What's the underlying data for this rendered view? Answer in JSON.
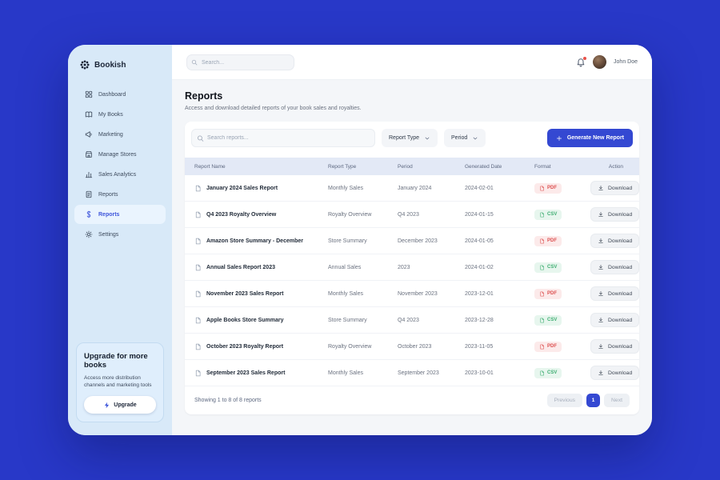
{
  "brand": {
    "name": "Bookish",
    "logo_icon": "flower"
  },
  "topbar": {
    "search_placeholder": "Search...",
    "user_name": "John Doe",
    "has_unread_notification": true
  },
  "sidebar": {
    "items": [
      {
        "label": "Dashboard",
        "icon": "grid",
        "active": false
      },
      {
        "label": "My Books",
        "icon": "book",
        "active": false
      },
      {
        "label": "Marketing",
        "icon": "megaphone",
        "active": false
      },
      {
        "label": "Manage Stores",
        "icon": "store",
        "active": false
      },
      {
        "label": "Sales Analytics",
        "icon": "bar-chart",
        "active": false
      },
      {
        "label": "Reports",
        "icon": "document",
        "active": false
      },
      {
        "label": "Reports",
        "icon": "dollar",
        "active": true
      },
      {
        "label": "Settings",
        "icon": "gear",
        "active": false
      }
    ],
    "upgrade": {
      "title": "Upgrade for more books",
      "description": "Access more distribution channels and marketing tools",
      "button_label": "Upgrade",
      "button_icon": "lightning"
    }
  },
  "page": {
    "title": "Reports",
    "subtitle": "Access and download detailed reports of your book sales and royalties."
  },
  "toolbar": {
    "search_placeholder": "Search reports...",
    "filters": [
      {
        "label": "Report Type"
      },
      {
        "label": "Period"
      }
    ],
    "generate_button": "Generate New Report"
  },
  "table": {
    "columns": [
      "Report Name",
      "Report Type",
      "Period",
      "Generated Date",
      "Format",
      "Action"
    ],
    "download_label": "Download",
    "rows": [
      {
        "name": "January 2024 Sales Report",
        "type": "Monthly Sales",
        "period": "January 2024",
        "date": "2024-02-01",
        "format": "PDF"
      },
      {
        "name": "Q4 2023 Royalty Overview",
        "type": "Royalty Overview",
        "period": "Q4 2023",
        "date": "2024-01-15",
        "format": "CSV"
      },
      {
        "name": "Amazon Store Summary - December",
        "type": "Store Summary",
        "period": "December 2023",
        "date": "2024-01-05",
        "format": "PDF"
      },
      {
        "name": "Annual Sales Report 2023",
        "type": "Annual Sales",
        "period": "2023",
        "date": "2024-01-02",
        "format": "CSV"
      },
      {
        "name": "November 2023 Sales Report",
        "type": "Monthly Sales",
        "period": "November 2023",
        "date": "2023-12-01",
        "format": "PDF"
      },
      {
        "name": "Apple Books Store Summary",
        "type": "Store Summary",
        "period": "Q4 2023",
        "date": "2023-12-28",
        "format": "CSV"
      },
      {
        "name": "October 2023 Royalty Report",
        "type": "Royalty Overview",
        "period": "October 2023",
        "date": "2023-11-05",
        "format": "PDF"
      },
      {
        "name": "September 2023 Sales Report",
        "type": "Monthly Sales",
        "period": "September 2023",
        "date": "2023-10-01",
        "format": "CSV"
      }
    ]
  },
  "pagination": {
    "summary": "Showing 1 to 8 of 8 reports",
    "previous_label": "Previous",
    "page": "1",
    "next_label": "Next"
  },
  "colors": {
    "background": "#2838C8",
    "accent": "#3448D2",
    "sidebar_bg": "#D8E9F8",
    "pdf_badge": "#DD5252",
    "csv_badge": "#3FAE72",
    "notification_dot": "#E8524A"
  }
}
